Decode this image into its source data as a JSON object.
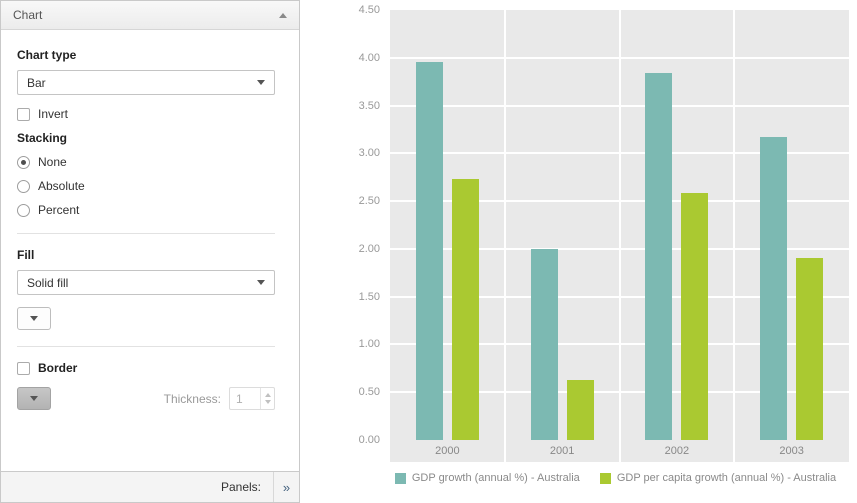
{
  "sidebar": {
    "header": "Chart",
    "chart_type_label": "Chart type",
    "chart_type_value": "Bar",
    "invert_label": "Invert",
    "stacking_label": "Stacking",
    "stacking_options": [
      "None",
      "Absolute",
      "Percent"
    ],
    "stacking_selected": "None",
    "fill_label": "Fill",
    "fill_value": "Solid fill",
    "border_label": "Border",
    "thickness_label": "Thickness:",
    "thickness_value": "1",
    "footer": {
      "panels_label": "Panels:",
      "expand_glyph": "»"
    }
  },
  "chart_data": {
    "type": "bar",
    "categories": [
      "2000",
      "2001",
      "2002",
      "2003"
    ],
    "series": [
      {
        "name": "GDP growth (annual %) - Australia",
        "color": "#7cb9b2",
        "values": [
          3.96,
          2.0,
          3.84,
          3.17
        ]
      },
      {
        "name": "GDP per capita growth (annual %) - Australia",
        "color": "#aac931",
        "values": [
          2.73,
          0.63,
          2.58,
          1.9
        ]
      }
    ],
    "ylim": [
      0,
      4.5
    ],
    "ytick_step": 0.5,
    "ytick_format_decimals": 2,
    "grid": true,
    "legend_position": "bottom",
    "plot_background": "#e9e9e9",
    "gridline_color": "#ffffff"
  }
}
